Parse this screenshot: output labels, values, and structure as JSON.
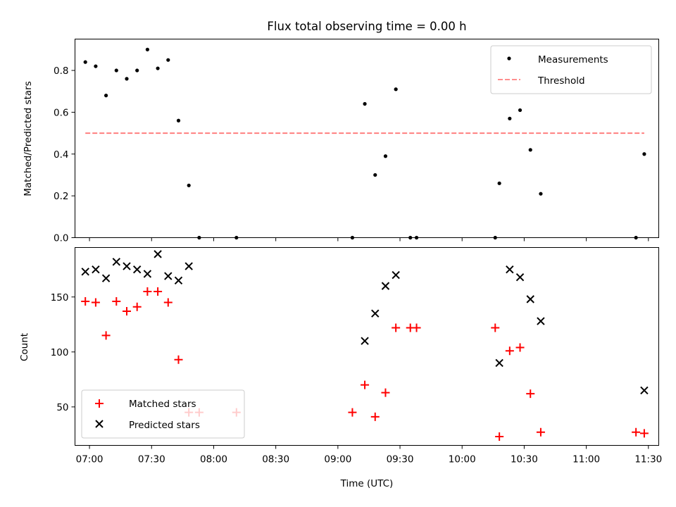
{
  "chart_data": [
    {
      "type": "scatter",
      "title": "Flux total observing time = 0.00 h",
      "xlabel": "",
      "ylabel": "Matched/Predicted stars",
      "xlim": [
        "06:53",
        "11:35"
      ],
      "ylim": [
        0,
        0.95
      ],
      "yticks": [
        0.0,
        0.2,
        0.4,
        0.6,
        0.8
      ],
      "ytick_labels": [
        "0.0",
        "0.2",
        "0.4",
        "0.6",
        "0.8"
      ],
      "xticks": [
        "07:00",
        "07:30",
        "08:00",
        "08:30",
        "09:00",
        "09:30",
        "10:00",
        "10:30",
        "11:00",
        "11:30"
      ],
      "grid": false,
      "legend_position": "top-right",
      "legend": [
        "Measurements",
        "Threshold"
      ],
      "series": [
        {
          "name": "Measurements",
          "marker": "dot",
          "color": "#000000",
          "x": [
            "06:58",
            "07:03",
            "07:08",
            "07:13",
            "07:18",
            "07:23",
            "07:28",
            "07:33",
            "07:38",
            "07:43",
            "07:48",
            "07:53",
            "08:11",
            "09:07",
            "09:13",
            "09:18",
            "09:23",
            "09:28",
            "09:35",
            "09:38",
            "10:16",
            "10:18",
            "10:23",
            "10:28",
            "10:33",
            "10:38",
            "11:24",
            "11:28"
          ],
          "y": [
            0.84,
            0.82,
            0.68,
            0.8,
            0.76,
            0.8,
            0.9,
            0.81,
            0.85,
            0.56,
            0.25,
            0.0,
            0.0,
            0.0,
            0.64,
            0.3,
            0.39,
            0.71,
            0.0,
            0.0,
            0.0,
            0.26,
            0.57,
            0.61,
            0.42,
            0.21,
            0.0,
            0.4
          ]
        },
        {
          "name": "Threshold",
          "style": "dashed-line",
          "color": "#ff7f7f",
          "x": [
            "06:58",
            "11:28"
          ],
          "y": [
            0.5,
            0.5
          ]
        }
      ]
    },
    {
      "type": "scatter",
      "title": "",
      "xlabel": "Time (UTC)",
      "ylabel": "Count",
      "xlim": [
        "06:53",
        "11:35"
      ],
      "ylim": [
        15,
        195
      ],
      "yticks": [
        50,
        100,
        150
      ],
      "ytick_labels": [
        "50",
        "100",
        "150"
      ],
      "xticks": [
        "07:00",
        "07:30",
        "08:00",
        "08:30",
        "09:00",
        "09:30",
        "10:00",
        "10:30",
        "11:00",
        "11:30"
      ],
      "xtick_labels": [
        "07:00",
        "07:30",
        "08:00",
        "08:30",
        "09:00",
        "09:30",
        "10:00",
        "10:30",
        "11:00",
        "11:30"
      ],
      "grid": false,
      "legend_position": "bottom-left",
      "legend": [
        "Matched stars",
        "Predicted stars"
      ],
      "series": [
        {
          "name": "Matched stars",
          "marker": "plus",
          "color": "#ff0000",
          "x": [
            "06:58",
            "07:03",
            "07:08",
            "07:13",
            "07:18",
            "07:23",
            "07:28",
            "07:33",
            "07:38",
            "07:43",
            "07:48",
            "07:53",
            "08:11",
            "09:07",
            "09:13",
            "09:18",
            "09:23",
            "09:28",
            "09:35",
            "09:38",
            "10:16",
            "10:18",
            "10:23",
            "10:28",
            "10:33",
            "10:38",
            "11:24",
            "11:28"
          ],
          "y": [
            146,
            145,
            115,
            146,
            137,
            141,
            155,
            155,
            145,
            93,
            45,
            45,
            45,
            45,
            70,
            41,
            63,
            122,
            122,
            122,
            122,
            23,
            101,
            104,
            62,
            27,
            27,
            26
          ]
        },
        {
          "name": "Predicted stars",
          "marker": "x",
          "color": "#000000",
          "x": [
            "06:58",
            "07:03",
            "07:08",
            "07:13",
            "07:18",
            "07:23",
            "07:28",
            "07:33",
            "07:38",
            "07:43",
            "07:48",
            "09:13",
            "09:18",
            "09:23",
            "09:28",
            "10:18",
            "10:23",
            "10:28",
            "10:33",
            "10:38",
            "11:28"
          ],
          "y": [
            173,
            175,
            167,
            182,
            178,
            175,
            171,
            189,
            169,
            165,
            178,
            110,
            135,
            160,
            170,
            90,
            175,
            168,
            148,
            128,
            65
          ]
        }
      ]
    }
  ]
}
